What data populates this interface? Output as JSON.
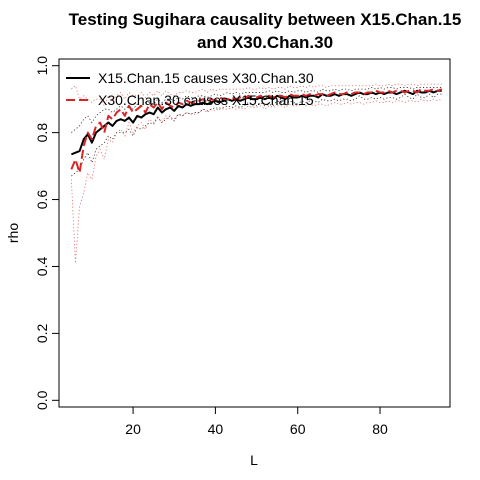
{
  "chart_data": {
    "type": "line",
    "title_line1": "Testing Sugihara causality between  X15.Chan.15",
    "title_line2": "and X30.Chan.30",
    "xlabel": "L",
    "ylabel": "rho",
    "xlim": [
      2,
      97
    ],
    "ylim": [
      -0.02,
      1.02
    ],
    "xticks": [
      20,
      40,
      60,
      80
    ],
    "yticks": [
      0.0,
      0.2,
      0.4,
      0.6,
      0.8,
      1.0
    ],
    "xtick_labels": [
      "20",
      "40",
      "60",
      "80"
    ],
    "ytick_labels": [
      "0.0",
      "0.2",
      "0.4",
      "0.6",
      "0.8",
      "1.0"
    ],
    "legend_position": "top-left",
    "x": [
      5,
      6,
      7,
      8,
      9,
      10,
      11,
      12,
      13,
      14,
      15,
      16,
      17,
      18,
      19,
      20,
      21,
      22,
      23,
      24,
      25,
      26,
      27,
      28,
      29,
      30,
      31,
      32,
      33,
      34,
      35,
      36,
      37,
      38,
      39,
      40,
      41,
      42,
      43,
      44,
      45,
      46,
      47,
      48,
      49,
      50,
      51,
      52,
      53,
      54,
      55,
      56,
      57,
      58,
      59,
      60,
      61,
      62,
      63,
      64,
      65,
      66,
      67,
      68,
      69,
      70,
      71,
      72,
      73,
      74,
      75,
      76,
      77,
      78,
      79,
      80,
      81,
      82,
      83,
      84,
      85,
      86,
      87,
      88,
      89,
      90,
      91,
      92,
      93,
      94,
      95
    ],
    "series": [
      {
        "name": "X15.Chan.15 causes X30.Chan.30",
        "color": "#000000",
        "dash": "solid",
        "values": [
          0.735,
          0.74,
          0.745,
          0.78,
          0.795,
          0.77,
          0.8,
          0.81,
          0.82,
          0.83,
          0.82,
          0.835,
          0.84,
          0.835,
          0.845,
          0.83,
          0.85,
          0.845,
          0.855,
          0.86,
          0.855,
          0.875,
          0.86,
          0.87,
          0.875,
          0.865,
          0.88,
          0.875,
          0.885,
          0.88,
          0.885,
          0.885,
          0.89,
          0.885,
          0.89,
          0.895,
          0.89,
          0.895,
          0.9,
          0.895,
          0.9,
          0.895,
          0.9,
          0.905,
          0.9,
          0.9,
          0.905,
          0.9,
          0.905,
          0.9,
          0.91,
          0.905,
          0.9,
          0.91,
          0.905,
          0.905,
          0.91,
          0.905,
          0.91,
          0.91,
          0.905,
          0.915,
          0.91,
          0.91,
          0.915,
          0.91,
          0.915,
          0.915,
          0.91,
          0.915,
          0.92,
          0.915,
          0.915,
          0.92,
          0.915,
          0.92,
          0.915,
          0.92,
          0.92,
          0.915,
          0.92,
          0.925,
          0.92,
          0.915,
          0.925,
          0.92,
          0.92,
          0.925,
          0.92,
          0.925,
          0.925
        ],
        "upper": [
          0.8,
          0.81,
          0.82,
          0.84,
          0.85,
          0.83,
          0.85,
          0.86,
          0.87,
          0.87,
          0.86,
          0.87,
          0.88,
          0.87,
          0.88,
          0.87,
          0.885,
          0.88,
          0.89,
          0.89,
          0.885,
          0.9,
          0.89,
          0.9,
          0.9,
          0.895,
          0.905,
          0.9,
          0.91,
          0.905,
          0.905,
          0.91,
          0.91,
          0.905,
          0.91,
          0.915,
          0.91,
          0.915,
          0.92,
          0.915,
          0.92,
          0.915,
          0.92,
          0.92,
          0.92,
          0.92,
          0.92,
          0.92,
          0.925,
          0.92,
          0.925,
          0.92,
          0.92,
          0.925,
          0.92,
          0.925,
          0.925,
          0.92,
          0.925,
          0.925,
          0.92,
          0.93,
          0.925,
          0.925,
          0.93,
          0.925,
          0.93,
          0.93,
          0.925,
          0.93,
          0.93,
          0.93,
          0.93,
          0.935,
          0.93,
          0.935,
          0.93,
          0.935,
          0.935,
          0.93,
          0.935,
          0.935,
          0.935,
          0.93,
          0.935,
          0.935,
          0.935,
          0.935,
          0.935,
          0.935,
          0.935
        ],
        "lower": [
          0.67,
          0.68,
          0.69,
          0.72,
          0.74,
          0.71,
          0.75,
          0.76,
          0.77,
          0.79,
          0.78,
          0.8,
          0.8,
          0.8,
          0.81,
          0.79,
          0.815,
          0.81,
          0.82,
          0.83,
          0.825,
          0.845,
          0.83,
          0.84,
          0.85,
          0.835,
          0.855,
          0.85,
          0.86,
          0.855,
          0.86,
          0.86,
          0.87,
          0.865,
          0.87,
          0.875,
          0.87,
          0.875,
          0.88,
          0.875,
          0.88,
          0.875,
          0.88,
          0.89,
          0.88,
          0.88,
          0.89,
          0.88,
          0.885,
          0.88,
          0.895,
          0.89,
          0.88,
          0.895,
          0.89,
          0.885,
          0.895,
          0.89,
          0.895,
          0.895,
          0.89,
          0.9,
          0.895,
          0.895,
          0.9,
          0.895,
          0.9,
          0.9,
          0.895,
          0.9,
          0.91,
          0.9,
          0.9,
          0.905,
          0.9,
          0.905,
          0.9,
          0.905,
          0.905,
          0.9,
          0.905,
          0.915,
          0.905,
          0.9,
          0.915,
          0.905,
          0.905,
          0.915,
          0.905,
          0.915,
          0.915
        ]
      },
      {
        "name": "X30.Chan.30 causes X15.Chan.15",
        "color": "#d62728",
        "dash": "dashed",
        "values": [
          0.69,
          0.72,
          0.68,
          0.76,
          0.8,
          0.78,
          0.82,
          0.83,
          0.8,
          0.85,
          0.84,
          0.86,
          0.87,
          0.85,
          0.88,
          0.86,
          0.87,
          0.88,
          0.86,
          0.885,
          0.875,
          0.89,
          0.87,
          0.89,
          0.88,
          0.875,
          0.89,
          0.885,
          0.895,
          0.89,
          0.89,
          0.895,
          0.9,
          0.89,
          0.9,
          0.895,
          0.905,
          0.9,
          0.9,
          0.905,
          0.9,
          0.905,
          0.9,
          0.91,
          0.905,
          0.905,
          0.91,
          0.9,
          0.91,
          0.905,
          0.91,
          0.91,
          0.905,
          0.915,
          0.91,
          0.91,
          0.915,
          0.91,
          0.915,
          0.91,
          0.915,
          0.915,
          0.91,
          0.915,
          0.92,
          0.915,
          0.915,
          0.92,
          0.915,
          0.92,
          0.92,
          0.915,
          0.92,
          0.92,
          0.925,
          0.92,
          0.92,
          0.925,
          0.92,
          0.925,
          0.925,
          0.92,
          0.925,
          0.925,
          0.92,
          0.93,
          0.925,
          0.925,
          0.93,
          0.925,
          0.93
        ],
        "upper": [
          0.93,
          0.94,
          0.9,
          0.91,
          0.9,
          0.89,
          0.9,
          0.9,
          0.88,
          0.91,
          0.9,
          0.91,
          0.92,
          0.9,
          0.92,
          0.91,
          0.91,
          0.92,
          0.905,
          0.92,
          0.91,
          0.925,
          0.91,
          0.925,
          0.915,
          0.91,
          0.92,
          0.92,
          0.925,
          0.92,
          0.92,
          0.925,
          0.93,
          0.92,
          0.93,
          0.925,
          0.93,
          0.93,
          0.93,
          0.93,
          0.93,
          0.93,
          0.93,
          0.935,
          0.93,
          0.93,
          0.935,
          0.93,
          0.935,
          0.93,
          0.935,
          0.935,
          0.93,
          0.94,
          0.935,
          0.935,
          0.94,
          0.935,
          0.94,
          0.935,
          0.94,
          0.94,
          0.935,
          0.94,
          0.94,
          0.94,
          0.94,
          0.94,
          0.94,
          0.94,
          0.94,
          0.94,
          0.94,
          0.94,
          0.945,
          0.94,
          0.94,
          0.945,
          0.94,
          0.945,
          0.945,
          0.94,
          0.945,
          0.945,
          0.94,
          0.945,
          0.945,
          0.945,
          0.945,
          0.945,
          0.945
        ],
        "lower": [
          0.66,
          0.41,
          0.58,
          0.62,
          0.68,
          0.66,
          0.73,
          0.75,
          0.72,
          0.78,
          0.77,
          0.8,
          0.81,
          0.79,
          0.83,
          0.8,
          0.82,
          0.83,
          0.81,
          0.84,
          0.83,
          0.85,
          0.83,
          0.85,
          0.84,
          0.84,
          0.855,
          0.85,
          0.86,
          0.855,
          0.855,
          0.86,
          0.87,
          0.86,
          0.87,
          0.865,
          0.875,
          0.87,
          0.87,
          0.875,
          0.87,
          0.875,
          0.87,
          0.88,
          0.875,
          0.875,
          0.88,
          0.87,
          0.88,
          0.875,
          0.88,
          0.88,
          0.875,
          0.885,
          0.88,
          0.88,
          0.885,
          0.88,
          0.885,
          0.88,
          0.885,
          0.885,
          0.88,
          0.885,
          0.89,
          0.885,
          0.885,
          0.89,
          0.885,
          0.89,
          0.89,
          0.885,
          0.89,
          0.89,
          0.895,
          0.89,
          0.89,
          0.895,
          0.89,
          0.895,
          0.895,
          0.89,
          0.895,
          0.895,
          0.89,
          0.9,
          0.895,
          0.895,
          0.9,
          0.895,
          0.9
        ]
      }
    ]
  }
}
